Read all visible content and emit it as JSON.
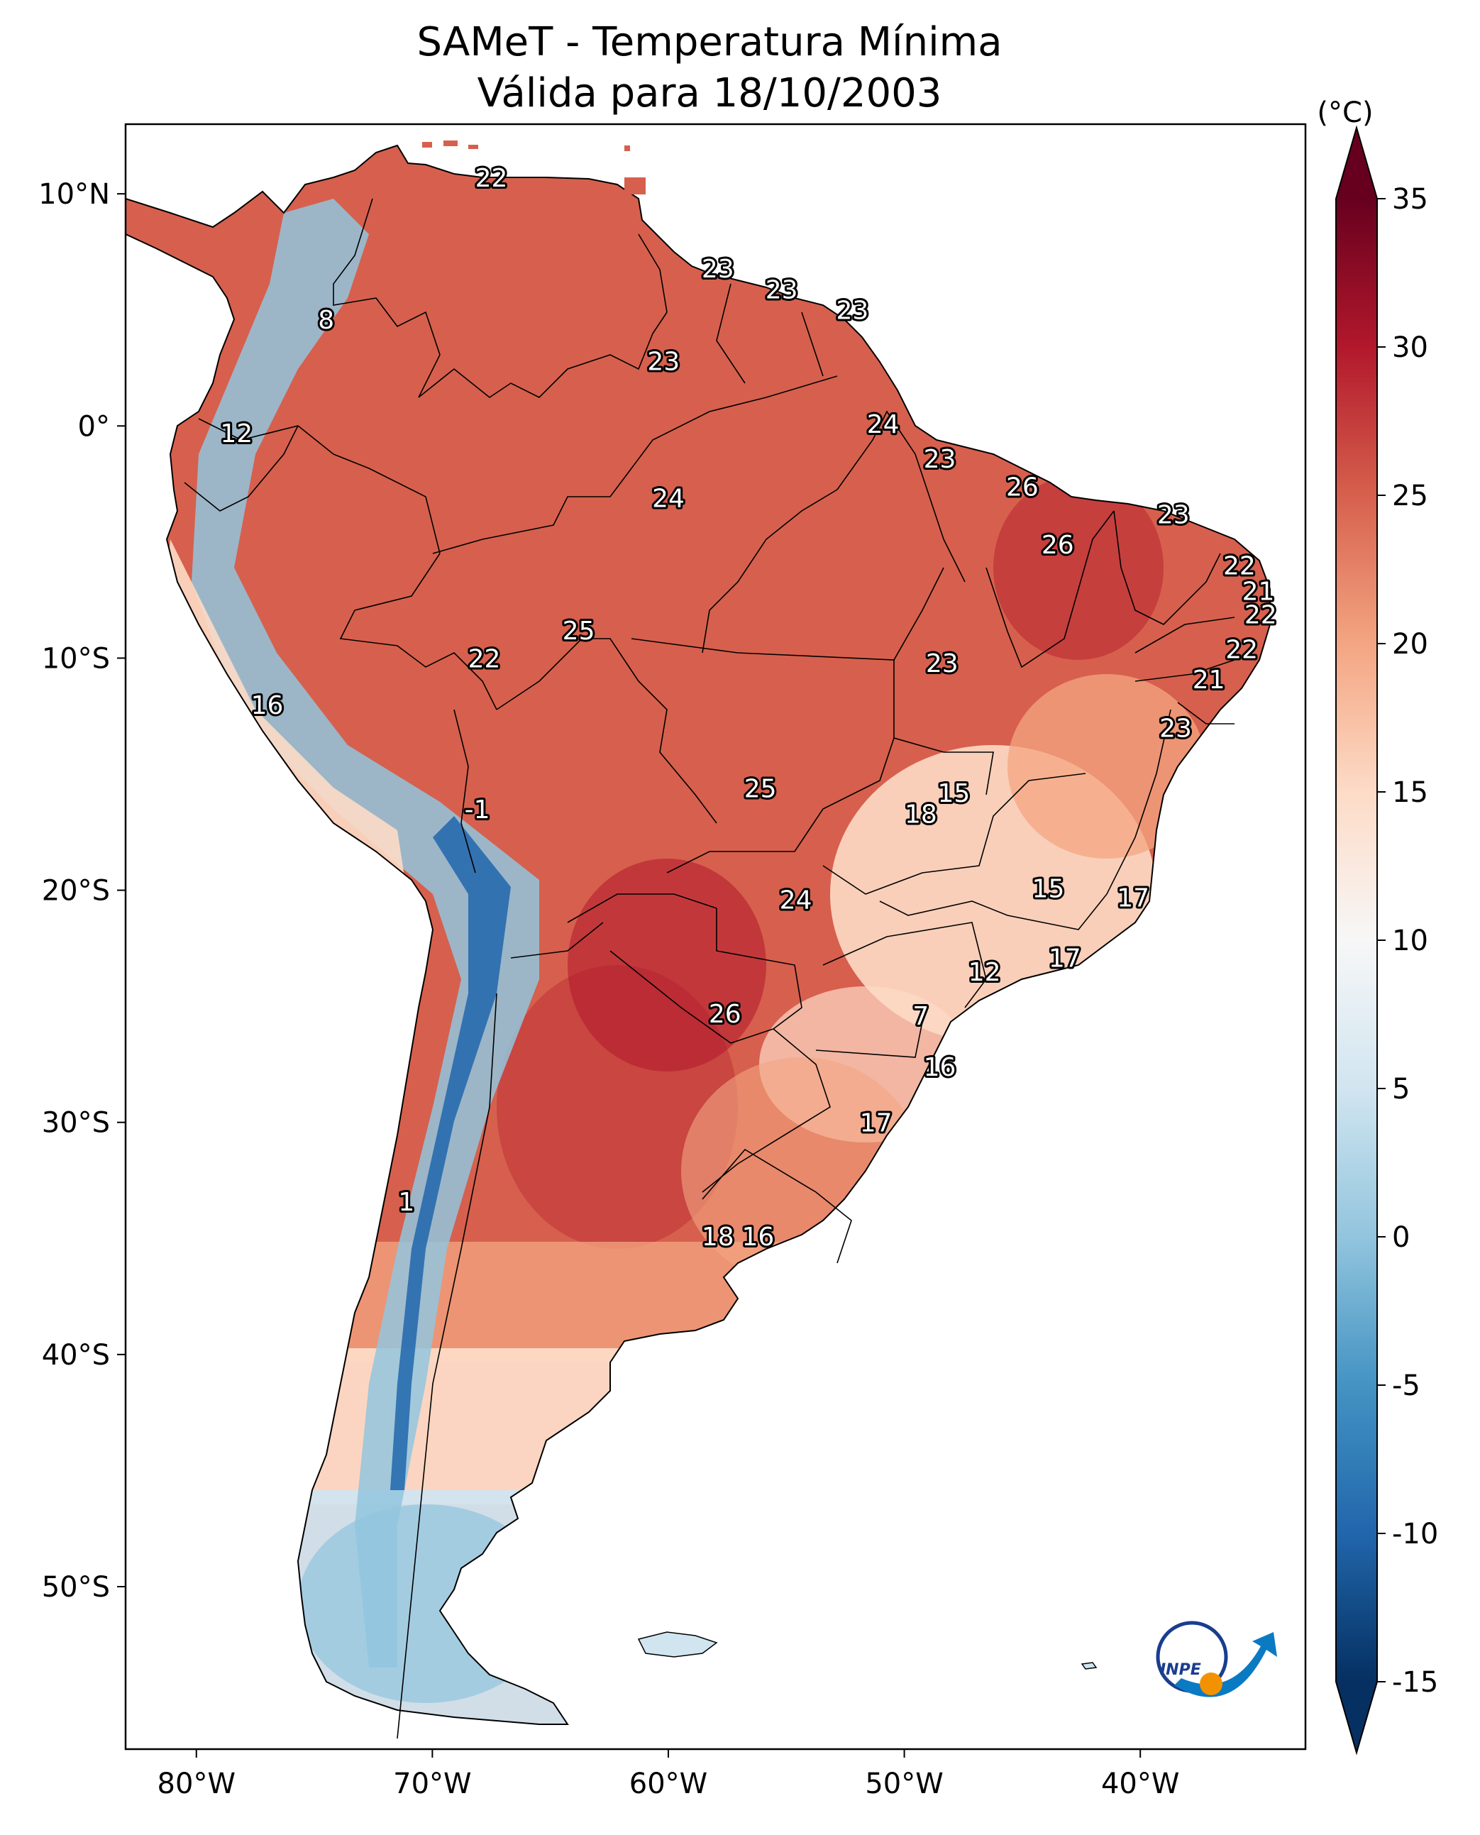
{
  "title": {
    "line1": "SAMeT - Temperatura Mínima",
    "line2": "Válida para 18/10/2003"
  },
  "axes": {
    "lon_labels": [
      "80°W",
      "70°W",
      "60°W",
      "50°W",
      "40°W"
    ],
    "lat_labels": [
      "10°N",
      "0°",
      "10°S",
      "20°S",
      "30°S",
      "40°S",
      "50°S"
    ],
    "lon_range": [
      -83,
      -33
    ],
    "lat_range": [
      -57,
      13
    ]
  },
  "colorbar": {
    "unit": "(°C)",
    "ticks": [
      "35",
      "30",
      "25",
      "20",
      "15",
      "10",
      "5",
      "0",
      "-5",
      "-10",
      "-15"
    ],
    "range": [
      -15,
      35
    ],
    "colormap": "RdBu_r",
    "colors": [
      "#053061",
      "#2166ac",
      "#4393c3",
      "#92c5de",
      "#d1e5f0",
      "#f7f7f7",
      "#fddbc7",
      "#f4a582",
      "#d6604d",
      "#b2182b",
      "#67001f"
    ]
  },
  "station_values": [
    {
      "text": "22",
      "lon": -67.5,
      "lat": 10.7
    },
    {
      "text": "8",
      "lon": -74.5,
      "lat": 4.6
    },
    {
      "text": "23",
      "lon": -57.9,
      "lat": 6.8
    },
    {
      "text": "23",
      "lon": -55.2,
      "lat": 5.9
    },
    {
      "text": "23",
      "lon": -52.2,
      "lat": 5.0
    },
    {
      "text": "23",
      "lon": -60.2,
      "lat": 2.8
    },
    {
      "text": "24",
      "lon": -50.9,
      "lat": 0.1
    },
    {
      "text": "12",
      "lon": -78.3,
      "lat": -0.3
    },
    {
      "text": "23",
      "lon": -48.5,
      "lat": -1.4
    },
    {
      "text": "24",
      "lon": -60.0,
      "lat": -3.1
    },
    {
      "text": "26",
      "lon": -45.0,
      "lat": -2.6
    },
    {
      "text": "23",
      "lon": -38.6,
      "lat": -3.8
    },
    {
      "text": "26",
      "lon": -43.5,
      "lat": -5.1
    },
    {
      "text": "22",
      "lon": -35.8,
      "lat": -6.0
    },
    {
      "text": "21",
      "lon": -35.0,
      "lat": -7.1
    },
    {
      "text": "22",
      "lon": -34.9,
      "lat": -8.1
    },
    {
      "text": "22",
      "lon": -35.7,
      "lat": -9.6
    },
    {
      "text": "25",
      "lon": -63.8,
      "lat": -8.8
    },
    {
      "text": "22",
      "lon": -67.8,
      "lat": -10.0
    },
    {
      "text": "23",
      "lon": -48.4,
      "lat": -10.2
    },
    {
      "text": "21",
      "lon": -37.1,
      "lat": -10.9
    },
    {
      "text": "16",
      "lon": -77.0,
      "lat": -12.0
    },
    {
      "text": "23",
      "lon": -38.5,
      "lat": -13.0
    },
    {
      "text": "25",
      "lon": -56.1,
      "lat": -15.6
    },
    {
      "text": "15",
      "lon": -47.9,
      "lat": -15.8
    },
    {
      "text": "18",
      "lon": -49.3,
      "lat": -16.7
    },
    {
      "text": "-1",
      "lon": -68.1,
      "lat": -16.5
    },
    {
      "text": "15",
      "lon": -43.9,
      "lat": -19.9
    },
    {
      "text": "17",
      "lon": -40.3,
      "lat": -20.3
    },
    {
      "text": "24",
      "lon": -54.6,
      "lat": -20.4
    },
    {
      "text": "17",
      "lon": -43.2,
      "lat": -22.9
    },
    {
      "text": "12",
      "lon": -46.6,
      "lat": -23.5
    },
    {
      "text": "7",
      "lon": -49.3,
      "lat": -25.4
    },
    {
      "text": "26",
      "lon": -57.6,
      "lat": -25.3
    },
    {
      "text": "16",
      "lon": -48.5,
      "lat": -27.6
    },
    {
      "text": "17",
      "lon": -51.2,
      "lat": -30.0
    },
    {
      "text": "1",
      "lon": -71.1,
      "lat": -33.4
    },
    {
      "text": "18",
      "lon": -57.9,
      "lat": -34.9
    },
    {
      "text": "16",
      "lon": -56.2,
      "lat": -34.9
    }
  ],
  "logo": {
    "text": "INPE"
  }
}
